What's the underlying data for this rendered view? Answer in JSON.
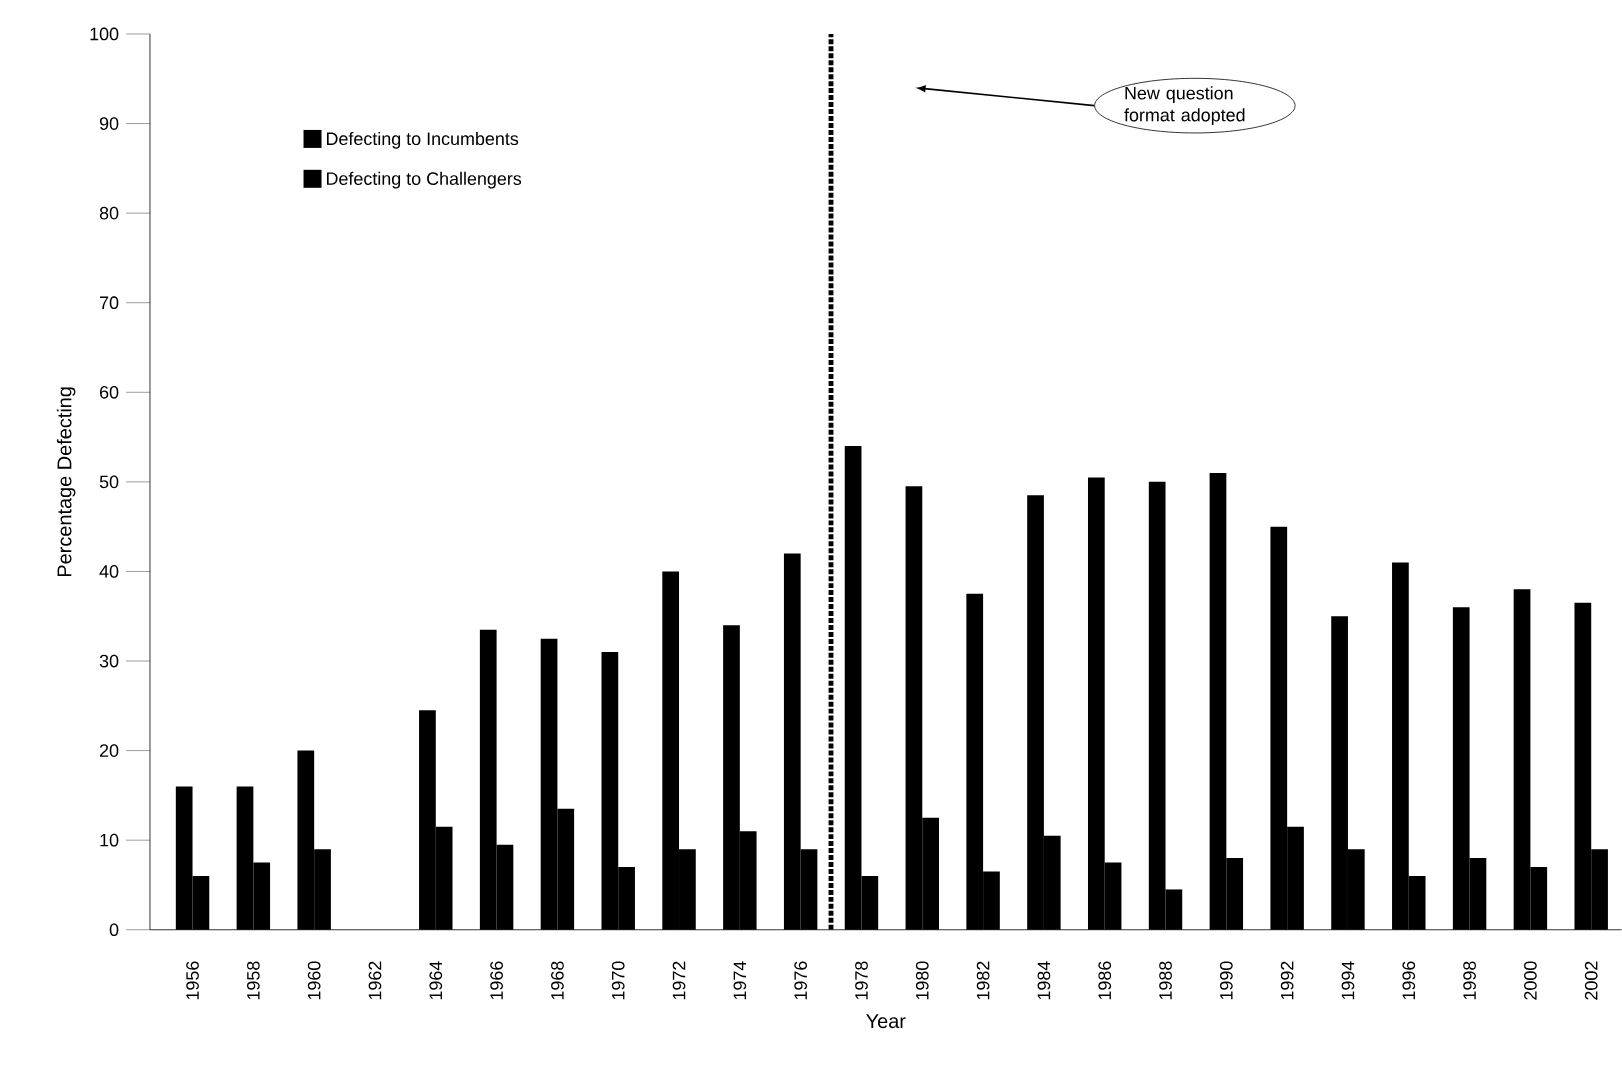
{
  "chart_data": {
    "type": "bar",
    "xlabel": "Year",
    "ylabel": "Percentage Defecting",
    "x": [
      1956,
      1958,
      1960,
      1962,
      1964,
      1966,
      1968,
      1970,
      1972,
      1974,
      1976,
      1978,
      1980,
      1982,
      1984,
      1986,
      1988,
      1990,
      1992,
      1994,
      1996,
      1998,
      2000,
      2002
    ],
    "series": [
      {
        "name": "Defecting to Incumbents",
        "color": "#000000",
        "values": [
          16,
          16,
          20,
          null,
          24.5,
          33.5,
          32.5,
          31,
          40,
          34,
          42,
          54,
          49.5,
          37.5,
          48.5,
          50.5,
          50,
          51,
          45,
          35,
          41,
          36,
          38,
          36.5
        ]
      },
      {
        "name": "Defecting to Challengers",
        "color": "#000000",
        "values": [
          6,
          7.5,
          9,
          null,
          11.5,
          9.5,
          13.5,
          7,
          9,
          11,
          9,
          6,
          12.5,
          6.5,
          10.5,
          7.5,
          4.5,
          8,
          11.5,
          9,
          6,
          8,
          7,
          9
        ]
      }
    ],
    "xlim": [
      1954.6,
      2003
    ],
    "xticks": [
      1956,
      1958,
      1960,
      1962,
      1964,
      1966,
      1968,
      1970,
      1972,
      1974,
      1976,
      1978,
      1980,
      1982,
      1984,
      1986,
      1988,
      1990,
      1992,
      1994,
      1996,
      1998,
      2000,
      2002
    ],
    "ylim": [
      0,
      100
    ],
    "yticks": [
      0,
      10,
      20,
      30,
      40,
      50,
      60,
      70,
      80,
      90,
      100
    ],
    "ref_lines": [
      {
        "axis": "x",
        "value": 1977,
        "color": "#000000",
        "line_style": "dotted"
      }
    ],
    "annotations": [
      "New question format adopted"
    ],
    "legend": "top left",
    "grid": false
  }
}
